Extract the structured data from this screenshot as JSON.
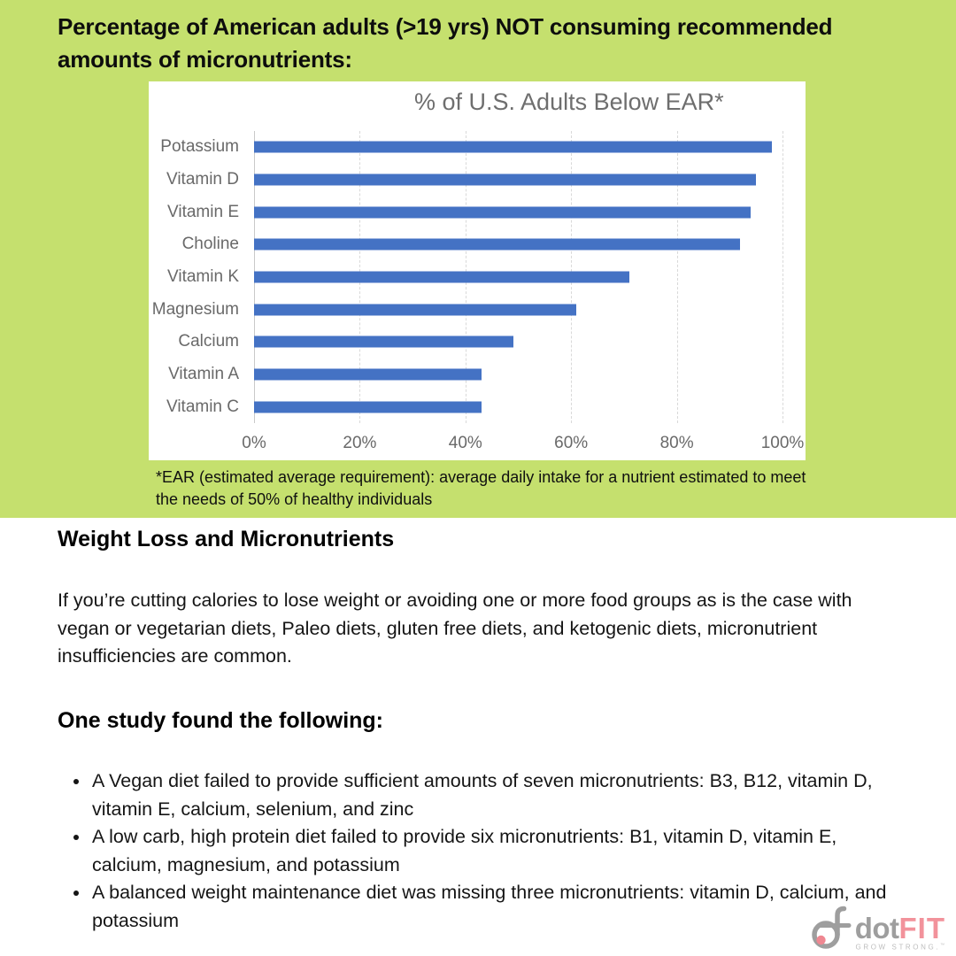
{
  "page": {
    "background_green": "#c5e06e",
    "header_title": "Percentage of American adults (>19 yrs) NOT consuming recommended amounts of micronutrients:",
    "footnote": "*EAR (estimated average requirement): average daily intake for a nutrient estimated to meet the needs of 50% of healthy individuals"
  },
  "chart_data": {
    "type": "bar",
    "orientation": "horizontal",
    "title": "% of U.S. Adults Below EAR*",
    "categories": [
      "Potassium",
      "Vitamin D",
      "Vitamin E",
      "Choline",
      "Vitamin K",
      "Magnesium",
      "Calcium",
      "Vitamin A",
      "Vitamin C"
    ],
    "values": [
      98,
      95,
      94,
      92,
      71,
      61,
      49,
      43,
      43
    ],
    "x_ticks": [
      "0%",
      "20%",
      "40%",
      "60%",
      "80%",
      "100%"
    ],
    "xlim": [
      0,
      100
    ],
    "xlabel": "",
    "ylabel": "",
    "grid": true,
    "legend": false,
    "bar_color": "#4472c4",
    "axis_text_color": "#696969",
    "title_color": "#6e6e6e"
  },
  "sections": {
    "weight_loss": {
      "heading": "Weight Loss and Micronutrients",
      "body": "If you’re cutting calories to lose weight or avoiding one or more food groups as is the case with vegan or vegetarian diets, Paleo diets, gluten free diets, and ketogenic diets, micronutrient insufficiencies are common."
    },
    "study": {
      "heading": "One study found the following:",
      "bullets": [
        "A Vegan diet failed to provide sufficient amounts of seven micronutrients: B3, B12, vitamin D, vitamin E, calcium, selenium, and zinc",
        "A low carb, high protein diet failed to provide six micronutrients: B1, vitamin D, vitamin E, calcium, magnesium, and potassium",
        "A balanced weight maintenance diet was missing three micronutrients: vitamin D, calcium, and potassium"
      ]
    }
  },
  "logo": {
    "brand_dot": "dot",
    "brand_fit": "FIT",
    "tagline": "GROW STRONG.",
    "trademark": "™",
    "gray": "#9e9e9e",
    "pink": "#f2929b"
  }
}
